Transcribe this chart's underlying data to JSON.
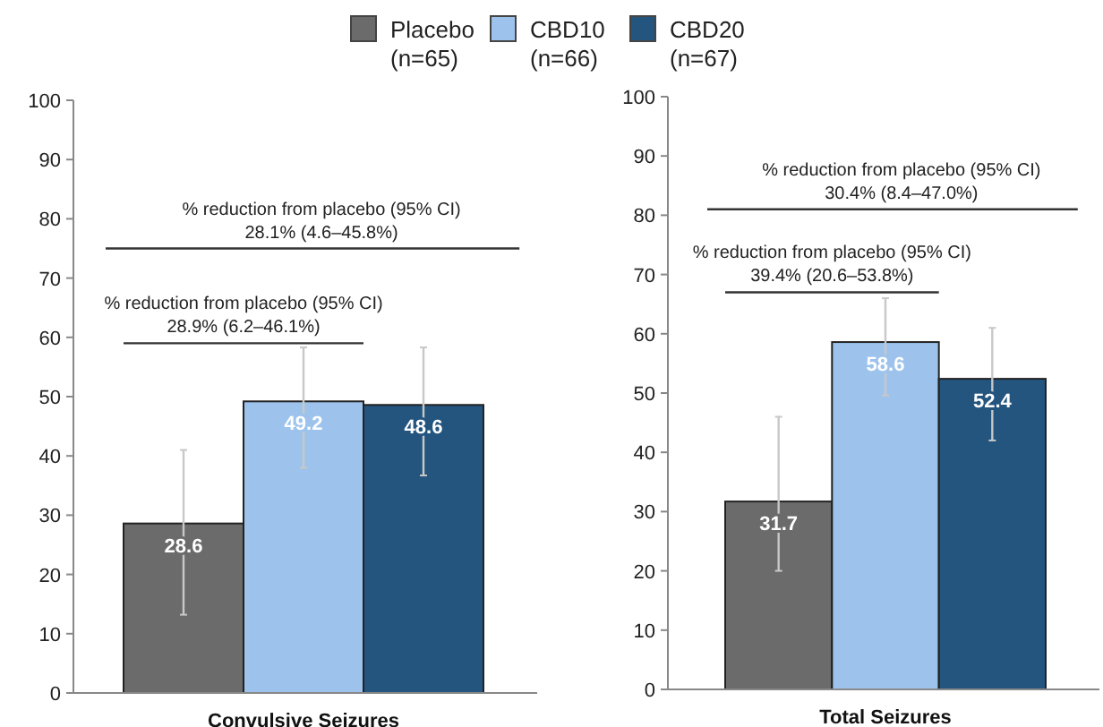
{
  "chart_data": [
    {
      "type": "bar",
      "categories": [
        "Convulsive Seizures"
      ],
      "ylim": [
        0,
        100
      ],
      "yticks": [
        0,
        10,
        20,
        30,
        40,
        50,
        60,
        70,
        80,
        90,
        100
      ],
      "grid": false,
      "legend": "top",
      "data_labels": true,
      "series": [
        {
          "name": "Placebo\n(n=65)",
          "color": "#6b6b6b",
          "values": [
            28.6
          ],
          "errors": [
            [
              13.2,
              41
            ]
          ]
        },
        {
          "name": "CBD10\n(n=66)",
          "color": "#9dc3ed",
          "values": [
            49.2
          ],
          "errors": [
            [
              38,
              58.3
            ]
          ]
        },
        {
          "name": "CBD20\n(n=67)",
          "color": "#23557f",
          "values": [
            48.6
          ],
          "errors": [
            [
              36.7,
              58.3
            ]
          ]
        }
      ],
      "ref_lines": [
        {
          "axis": "y",
          "value": 75,
          "color": "#333333",
          "label": "% reduction from placebo (95% CI)\n28.1% (4.6–45.8%)"
        },
        {
          "axis": "y",
          "value": 59,
          "color": "#333333",
          "label": "% reduction from placebo (95% CI)\n28.9% (6.2–46.1%)"
        }
      ]
    },
    {
      "type": "bar",
      "categories": [
        "Total Seizures"
      ],
      "ylim": [
        0,
        100
      ],
      "yticks": [
        0,
        10,
        20,
        30,
        40,
        50,
        60,
        70,
        80,
        90,
        100
      ],
      "grid": false,
      "data_labels": true,
      "series": [
        {
          "color": "#6b6b6b",
          "values": [
            31.7
          ],
          "errors": [
            [
              20,
              46
            ]
          ]
        },
        {
          "color": "#9dc3ed",
          "values": [
            58.6
          ],
          "errors": [
            [
              49.6,
              66
            ]
          ]
        },
        {
          "color": "#23557f",
          "values": [
            52.4
          ],
          "errors": [
            [
              42,
              61
            ]
          ]
        }
      ],
      "ref_lines": [
        {
          "axis": "y",
          "value": 81,
          "color": "#333333",
          "label": "% reduction from placebo (95% CI)\n30.4% (8.4–47.0%)"
        },
        {
          "axis": "y",
          "value": 67,
          "color": "#333333",
          "label": "% reduction from placebo (95% CI)\n39.4% (20.6–53.8%)"
        }
      ]
    }
  ]
}
